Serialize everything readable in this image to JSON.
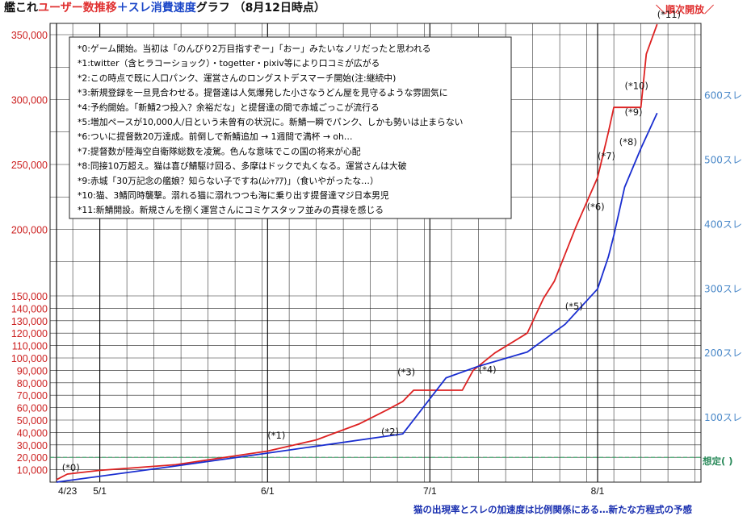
{
  "title": {
    "part1": "艦これ",
    "part2": "ユーザー数推移",
    "part3": "＋",
    "part4": "スレ消費速度",
    "part5": "グラフ （8月12日時点）"
  },
  "corner_label": "＼順次開放／",
  "assumed_label": "想定( )",
  "footer_note": "猫の出現率とスレの加速度は比例関係にある…新たな方程式の予感",
  "colors": {
    "users_line": "#dd2222",
    "threads_line": "#1a2ed0",
    "grid": "#222222",
    "assumed_line": "#2a9a5a",
    "left_ticks": "#cc2020",
    "right_ticks": "#4a88c8"
  },
  "legend": [
    "*0:ゲーム開始。当初は「のんびり2万目指すぞー」「おー」みたいなノリだったと思われる",
    "*1:twitter（含ヒラコーショック）・togetter・pixiv等により口コミが広がる",
    "*2:この時点で既に人口パンク、運営さんのロングストデスマーチ開始(注:継続中)",
    "*3:新規登録を一旦見合わせる。提督達は人気爆発した小さなうどん屋を見守るような雰囲気に",
    "*4:予約開始。「新鯖2つ投入？余裕だな」と提督達の間で赤城ごっこが流行る",
    "*5:増加ペースが10,000人/日という未曾有の状況に。新鯖一瞬でパンク、しかも勢いは止まらない",
    "*6:ついに提督数20万達成。前倒しで新鯖追加 → 1週間で満杯 → oh…",
    "*7:提督数が陸海空自衛隊総数を凌駕。色んな意味でこの国の将来が心配",
    "*8:同接10万超え。猫は喜び鯖駆け回る、多摩はドックで丸くなる。運営さんは大破",
    "*9:赤城「30万記念の艦娘？知らない子ですね(ﾑｼｬｱｱ)」（食いやがったな…）",
    "*10:猫、3鯖同時襲撃。溺れる猫に溺れつつも海に乗り出す提督達マジ日本男児",
    "*11:新鯖開設。新規さんを捌く運営さんにコミケスタッフ並みの貫禄を感じる"
  ],
  "chart_data": {
    "type": "line",
    "x_unit": "date (2013)",
    "x_tick_labels": [
      "4/23",
      "5/1",
      "6/1",
      "7/1",
      "8/1"
    ],
    "x_tick_dates": [
      "2013-04-23",
      "2013-05-01",
      "2013-06-01",
      "2013-07-01",
      "2013-08-01"
    ],
    "xlim": [
      "2013-04-23",
      "2013-08-12"
    ],
    "y_left": {
      "ylim": [
        0,
        360000
      ],
      "ticks": [
        10000,
        20000,
        30000,
        40000,
        50000,
        60000,
        70000,
        80000,
        90000,
        100000,
        110000,
        120000,
        130000,
        140000,
        150000,
        200000,
        250000,
        300000,
        350000
      ],
      "tick_labels": [
        "10,000",
        "20,000",
        "30,000",
        "40,000",
        "50,000",
        "60,000",
        "70,000",
        "80,000",
        "90,000",
        "100,000",
        "110,000",
        "120,000",
        "130,000",
        "140,000",
        "150,000",
        "200,000",
        "250,000",
        "300,000",
        "350,000"
      ]
    },
    "y_right": {
      "ylim": [
        0,
        760
      ],
      "ticks": [
        100,
        200,
        300,
        400,
        500,
        600
      ],
      "tick_labels": [
        "100スレ",
        "200スレ",
        "300スレ",
        "400スレ",
        "500スレ",
        "600スレ"
      ]
    },
    "assumed_value": 20000,
    "grid": true,
    "legend_position": "top-left",
    "series": [
      {
        "axis": "left",
        "points": [
          [
            "2013-04-23",
            2000
          ],
          [
            "2013-04-25",
            6500
          ],
          [
            "2013-05-01",
            9500
          ],
          [
            "2013-05-15",
            14000
          ],
          [
            "2013-06-01",
            25000
          ],
          [
            "2013-06-10",
            34000
          ],
          [
            "2013-06-18",
            47000
          ],
          [
            "2013-06-23",
            58000
          ],
          [
            "2013-06-26",
            65000
          ],
          [
            "2013-06-28",
            74000
          ],
          [
            "2013-07-04",
            74000
          ],
          [
            "2013-07-07",
            74000
          ],
          [
            "2013-07-09",
            90000
          ],
          [
            "2013-07-13",
            104000
          ],
          [
            "2013-07-19",
            120000
          ],
          [
            "2013-07-22",
            148000
          ],
          [
            "2013-07-24",
            160000
          ],
          [
            "2013-07-28",
            202000
          ],
          [
            "2013-08-01",
            240000
          ],
          [
            "2013-08-03",
            275000
          ],
          [
            "2013-08-04",
            294000
          ],
          [
            "2013-08-07",
            294000
          ],
          [
            "2013-08-09",
            294000
          ],
          [
            "2013-08-10",
            335000
          ],
          [
            "2013-08-12",
            358000
          ]
        ]
      },
      {
        "axis": "right",
        "points": [
          [
            "2013-04-23",
            0
          ],
          [
            "2013-05-15",
            25
          ],
          [
            "2013-06-01",
            45
          ],
          [
            "2013-06-26",
            75
          ],
          [
            "2013-07-04",
            162
          ],
          [
            "2013-07-10",
            180
          ],
          [
            "2013-07-19",
            202
          ],
          [
            "2013-07-26",
            245
          ],
          [
            "2013-08-01",
            300
          ],
          [
            "2013-08-03",
            350
          ],
          [
            "2013-08-04",
            383
          ],
          [
            "2013-08-06",
            458
          ],
          [
            "2013-08-09",
            518
          ],
          [
            "2013-08-12",
            573
          ]
        ]
      }
    ],
    "annotations": [
      {
        "label": "(*0)",
        "date": "2013-04-24",
        "value": 9000
      },
      {
        "label": "(*1)",
        "date": "2013-06-01",
        "value": 35000
      },
      {
        "label": "(*2)",
        "date": "2013-06-22",
        "value": 38000
      },
      {
        "label": "(*3)",
        "date": "2013-06-25",
        "value": 86000
      },
      {
        "label": "(*4)",
        "date": "2013-07-10",
        "value": 88000
      },
      {
        "label": "(*5)",
        "date": "2013-07-26",
        "value": 139000
      },
      {
        "label": "(*6)",
        "date": "2013-07-30",
        "value": 215000
      },
      {
        "label": "(*7)",
        "date": "2013-08-01",
        "value": 254000
      },
      {
        "label": "(*8)",
        "date": "2013-08-05",
        "value": 265000
      },
      {
        "label": "(*9)",
        "date": "2013-08-06",
        "value": 288000
      },
      {
        "label": "(*10)",
        "date": "2013-08-06",
        "value": 308000
      },
      {
        "label": "(*11)",
        "date": "2013-08-12",
        "value": 363000
      }
    ]
  }
}
